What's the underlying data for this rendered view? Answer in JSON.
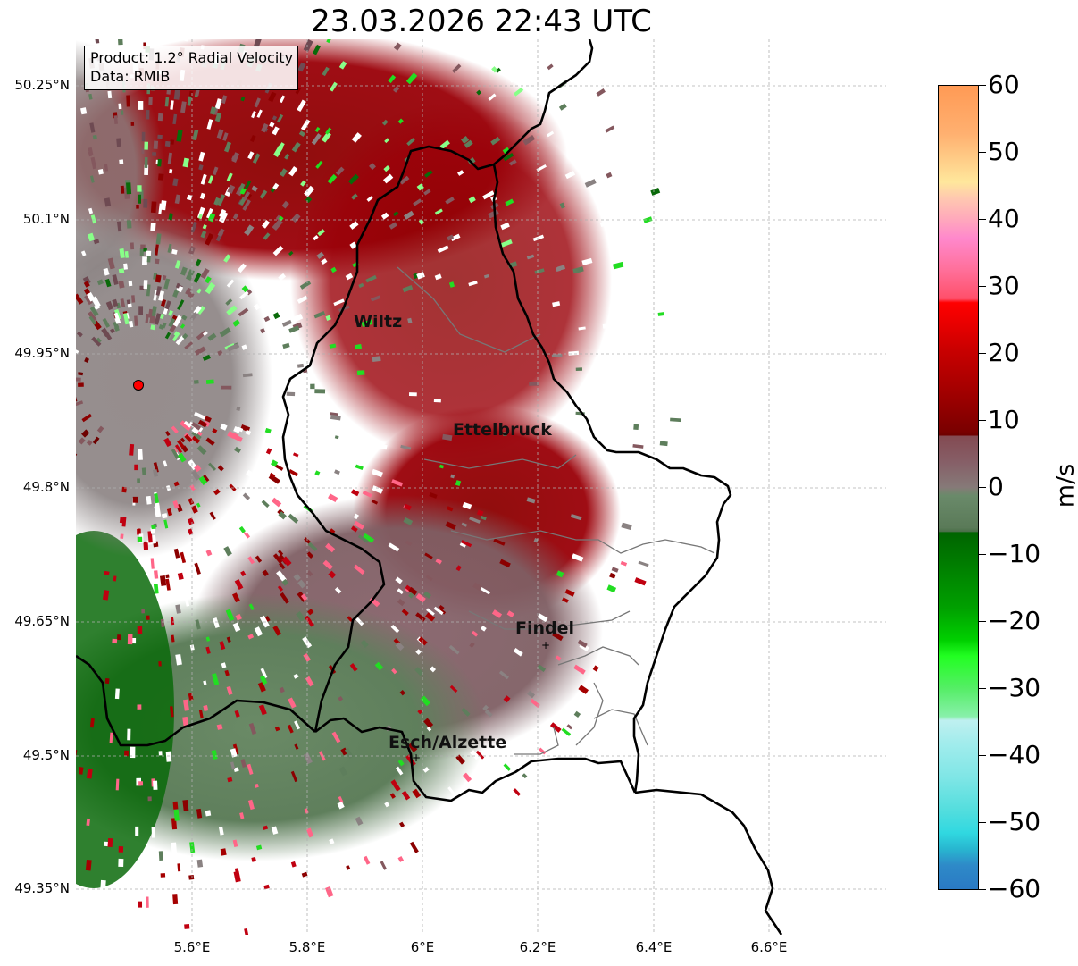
{
  "title": "23.03.2026 22:43 UTC",
  "info": {
    "product_line": "Product: 1.2° Radial Velocity",
    "data_line": "Data: RMIB"
  },
  "axes": {
    "lat_labels": [
      "50.25°N",
      "50.1°N",
      "49.95°N",
      "49.8°N",
      "49.65°N",
      "49.5°N",
      "49.35°N"
    ],
    "lon_labels": [
      "5.6°E",
      "5.8°E",
      "6°E",
      "6.2°E",
      "6.4°E",
      "6.6°E"
    ]
  },
  "cities": {
    "wiltz": "Wiltz",
    "ettelbruck": "Ettelbruck",
    "findel": "Findel",
    "esch": "Esch/Alzette"
  },
  "colorbar": {
    "unit": "m/s",
    "tick_labels": [
      "60",
      "50",
      "40",
      "30",
      "20",
      "10",
      "0",
      "−10",
      "−20",
      "−30",
      "−40",
      "−50",
      "−60"
    ],
    "min": -60,
    "max": 60
  },
  "colors": {
    "receding_dark": "#8b0000",
    "receding": "#a80008",
    "near_zero_red": "#84585e",
    "near_zero_green": "#5e7e5c",
    "approaching": "#0a6a0a",
    "bright_green": "#22dd22",
    "border": "#000000",
    "radar_site": "#ff0000"
  }
}
